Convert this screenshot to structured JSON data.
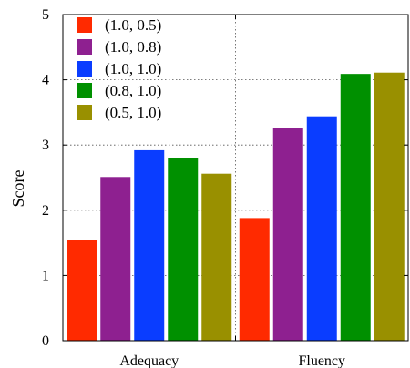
{
  "chart_data": {
    "type": "bar",
    "categories": [
      "Adequacy",
      "Fluency"
    ],
    "series": [
      {
        "name": "(1.0, 0.5)",
        "color": "#ff2a00",
        "values": [
          1.55,
          1.88
        ]
      },
      {
        "name": "(1.0, 0.8)",
        "color": "#8e2090",
        "values": [
          2.51,
          3.26
        ]
      },
      {
        "name": "(1.0, 1.0)",
        "color": "#0a3dff",
        "values": [
          2.92,
          3.44
        ]
      },
      {
        "name": "(0.8, 1.0)",
        "color": "#009000",
        "values": [
          2.8,
          4.09
        ]
      },
      {
        "name": "(0.5, 1.0)",
        "color": "#999000",
        "values": [
          2.56,
          4.11
        ]
      }
    ],
    "ylabel": "Score",
    "xlabel": "",
    "ylim": [
      0,
      5
    ],
    "yticks": [
      "0",
      "1",
      "2",
      "3",
      "4",
      "5"
    ],
    "grid": true,
    "legend_position": "top-left"
  }
}
